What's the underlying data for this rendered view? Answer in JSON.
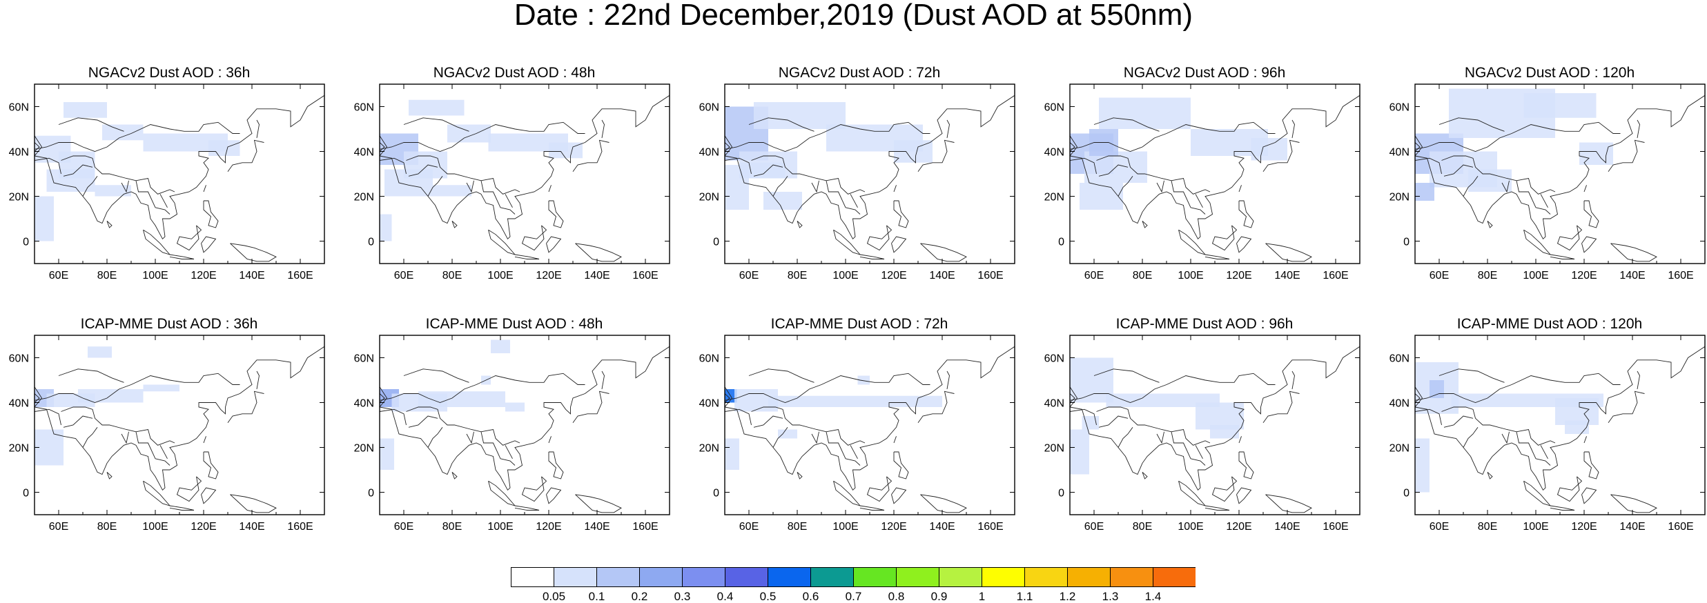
{
  "title": "Date : 22nd December,2019 (Dust AOD at 550nm)",
  "map_extent": {
    "lon_min": 50,
    "lon_max": 170,
    "lat_min": -10,
    "lat_max": 70
  },
  "axis_ticks": {
    "lon": [
      60,
      80,
      100,
      120,
      140,
      160
    ],
    "lon_labels": [
      "60E",
      "80E",
      "100E",
      "120E",
      "140E",
      "160E"
    ],
    "lat": [
      0,
      20,
      40,
      60
    ],
    "lat_labels": [
      "0",
      "20N",
      "40N",
      "60N"
    ]
  },
  "colorbar": {
    "colors": [
      "#ffffff",
      "#d6e2fb",
      "#b4c7f6",
      "#8ea9f1",
      "#7c8ff0",
      "#5863e5",
      "#0a66ee",
      "#0c9a92",
      "#66e622",
      "#8ff01e",
      "#b6f240",
      "#fefe00",
      "#f8d512",
      "#f6b002",
      "#f79010",
      "#f76c0c",
      "#fc2a12"
    ],
    "labels": [
      "0.05",
      "0.1",
      "0.2",
      "0.3",
      "0.4",
      "0.5",
      "0.6",
      "0.7",
      "0.8",
      "0.9",
      "1",
      "1.1",
      "1.2",
      "1.3",
      "1.4"
    ]
  },
  "panels": [
    {
      "title": "NGACv2 Dust AOD : 36h",
      "model": "NGACv2",
      "lead_hours": 36
    },
    {
      "title": "NGACv2 Dust AOD : 48h",
      "model": "NGACv2",
      "lead_hours": 48
    },
    {
      "title": "NGACv2 Dust AOD : 72h",
      "model": "NGACv2",
      "lead_hours": 72
    },
    {
      "title": "NGACv2 Dust AOD : 96h",
      "model": "NGACv2",
      "lead_hours": 96
    },
    {
      "title": "NGACv2 Dust AOD : 120h",
      "model": "NGACv2",
      "lead_hours": 120
    },
    {
      "title": "ICAP-MME Dust AOD : 36h",
      "model": "ICAP-MME",
      "lead_hours": 36
    },
    {
      "title": "ICAP-MME Dust AOD : 48h",
      "model": "ICAP-MME",
      "lead_hours": 48
    },
    {
      "title": "ICAP-MME Dust AOD : 72h",
      "model": "ICAP-MME",
      "lead_hours": 72
    },
    {
      "title": "ICAP-MME Dust AOD : 96h",
      "model": "ICAP-MME",
      "lead_hours": 96
    },
    {
      "title": "ICAP-MME Dust AOD : 120h",
      "model": "ICAP-MME",
      "lead_hours": 120
    }
  ],
  "dust_fields": {
    "NGACv2": [
      {
        "lon": [
          [
            50,
            65
          ],
          [
            60,
            75
          ],
          [
            62,
            80
          ],
          [
            78,
            95
          ],
          [
            95,
            130
          ],
          [
            122,
            135
          ],
          [
            75,
            90
          ],
          [
            50,
            58
          ],
          [
            55,
            75
          ]
        ],
        "lat": [
          [
            35,
            47
          ],
          [
            28,
            40
          ],
          [
            55,
            62
          ],
          [
            45,
            52
          ],
          [
            40,
            48
          ],
          [
            38,
            45
          ],
          [
            20,
            25
          ],
          [
            0,
            20
          ],
          [
            22,
            32
          ]
        ],
        "level": [
          1,
          1,
          1,
          1,
          1,
          1,
          1,
          1,
          1
        ]
      },
      {
        "lon": [
          [
            50,
            66
          ],
          [
            60,
            78
          ],
          [
            62,
            85
          ],
          [
            78,
            96
          ],
          [
            95,
            128
          ],
          [
            120,
            134
          ],
          [
            72,
            88
          ],
          [
            50,
            55
          ],
          [
            52,
            72
          ]
        ],
        "lat": [
          [
            34,
            48
          ],
          [
            28,
            40
          ],
          [
            56,
            63
          ],
          [
            44,
            52
          ],
          [
            40,
            48
          ],
          [
            37,
            44
          ],
          [
            20,
            25
          ],
          [
            0,
            12
          ],
          [
            20,
            32
          ]
        ],
        "level": [
          2,
          1,
          1,
          1,
          1,
          1,
          1,
          1,
          1
        ]
      },
      {
        "lon": [
          [
            50,
            68
          ],
          [
            56,
            80
          ],
          [
            62,
            100
          ],
          [
            92,
            132
          ],
          [
            120,
            136
          ],
          [
            66,
            82
          ],
          [
            50,
            60
          ],
          [
            56,
            75
          ]
        ],
        "lat": [
          [
            36,
            60
          ],
          [
            28,
            40
          ],
          [
            50,
            62
          ],
          [
            40,
            52
          ],
          [
            35,
            45
          ],
          [
            14,
            22
          ],
          [
            14,
            34
          ],
          [
            28,
            35
          ]
        ],
        "level": [
          2,
          1,
          1,
          1,
          1,
          1,
          1,
          1
        ]
      },
      {
        "lon": [
          [
            50,
            68
          ],
          [
            56,
            82
          ],
          [
            62,
            100
          ],
          [
            100,
            132
          ],
          [
            125,
            140
          ],
          [
            54,
            72
          ],
          [
            58,
            70
          ]
        ],
        "lat": [
          [
            30,
            48
          ],
          [
            26,
            40
          ],
          [
            50,
            64
          ],
          [
            38,
            50
          ],
          [
            36,
            46
          ],
          [
            14,
            26
          ],
          [
            38,
            50
          ]
        ],
        "level": [
          2,
          1,
          1,
          1,
          1,
          1,
          2
        ]
      },
      {
        "lon": [
          [
            50,
            70
          ],
          [
            56,
            84
          ],
          [
            64,
            108
          ],
          [
            95,
            125
          ],
          [
            72,
            90
          ],
          [
            50,
            58
          ],
          [
            118,
            132
          ]
        ],
        "lat": [
          [
            30,
            48
          ],
          [
            24,
            40
          ],
          [
            46,
            68
          ],
          [
            55,
            66
          ],
          [
            22,
            32
          ],
          [
            18,
            26
          ],
          [
            34,
            44
          ]
        ],
        "level": [
          2,
          1,
          1,
          1,
          1,
          2,
          1
        ]
      }
    ],
    "ICAP-MME": [
      {
        "lon": [
          [
            50,
            58
          ],
          [
            55,
            75
          ],
          [
            68,
            95
          ],
          [
            95,
            110
          ],
          [
            50,
            62
          ],
          [
            72,
            82
          ]
        ],
        "lat": [
          [
            38,
            46
          ],
          [
            38,
            44
          ],
          [
            40,
            46
          ],
          [
            45,
            48
          ],
          [
            12,
            28
          ],
          [
            60,
            65
          ]
        ],
        "level": [
          2,
          1,
          1,
          1,
          1,
          1
        ]
      },
      {
        "lon": [
          [
            50,
            58
          ],
          [
            55,
            78
          ],
          [
            66,
            102
          ],
          [
            92,
            96
          ],
          [
            96,
            104
          ],
          [
            102,
            110
          ],
          [
            50,
            56
          ]
        ],
        "lat": [
          [
            38,
            46
          ],
          [
            36,
            44
          ],
          [
            38,
            45
          ],
          [
            48,
            52
          ],
          [
            62,
            68
          ],
          [
            36,
            40
          ],
          [
            10,
            24
          ]
        ],
        "level": [
          3,
          1,
          1,
          1,
          1,
          1,
          1
        ]
      },
      {
        "lon": [
          [
            50,
            55
          ],
          [
            54,
            72
          ],
          [
            68,
            140
          ],
          [
            50,
            56
          ],
          [
            72,
            80
          ],
          [
            105,
            110
          ]
        ],
        "lat": [
          [
            40,
            46
          ],
          [
            36,
            46
          ],
          [
            38,
            43
          ],
          [
            10,
            24
          ],
          [
            24,
            28
          ],
          [
            48,
            52
          ]
        ],
        "level": [
          6,
          1,
          1,
          1,
          1,
          1
        ]
      },
      {
        "lon": [
          [
            50,
            68
          ],
          [
            65,
            112
          ],
          [
            102,
            122
          ],
          [
            108,
            120
          ],
          [
            50,
            58
          ],
          [
            55,
            62
          ]
        ],
        "lat": [
          [
            40,
            60
          ],
          [
            38,
            44
          ],
          [
            28,
            40
          ],
          [
            24,
            30
          ],
          [
            8,
            28
          ],
          [
            28,
            34
          ]
        ],
        "level": [
          1,
          1,
          1,
          1,
          1,
          1
        ]
      },
      {
        "lon": [
          [
            50,
            68
          ],
          [
            65,
            128
          ],
          [
            108,
            126
          ],
          [
            112,
            122
          ],
          [
            50,
            56
          ],
          [
            56,
            62
          ]
        ],
        "lat": [
          [
            35,
            58
          ],
          [
            38,
            44
          ],
          [
            30,
            42
          ],
          [
            26,
            32
          ],
          [
            0,
            24
          ],
          [
            42,
            50
          ]
        ],
        "level": [
          1,
          1,
          1,
          1,
          1,
          2
        ]
      }
    ]
  }
}
